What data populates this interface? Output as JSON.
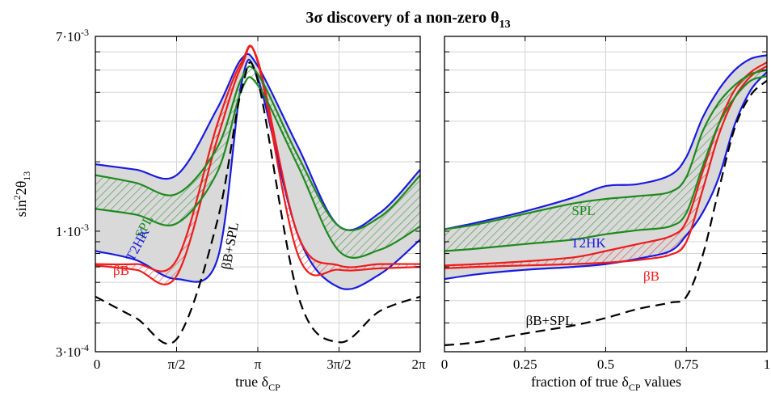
{
  "title": {
    "main": "3σ discovery of a non-zero θ",
    "sub": "13"
  },
  "ylabel": {
    "base": "sin",
    "sup": "2",
    "mid": "2θ",
    "sub": "13"
  },
  "yticks": [
    {
      "value": 0.0003,
      "base": "3·10",
      "exp": "-4"
    },
    {
      "value": 0.001,
      "base": "1·10",
      "exp": "-3"
    },
    {
      "value": 0.007,
      "base": "7·10",
      "exp": "-3"
    }
  ],
  "left_xlabel": {
    "base": "true δ",
    "sub": "CP"
  },
  "right_xlabel": {
    "base": "fraction of true δ",
    "sub": "CP",
    "tail": " values"
  },
  "left_xticks": [
    "0",
    "π/2",
    "π",
    "3π/2",
    "2π"
  ],
  "right_xticks": [
    "0",
    "0.25",
    "0.5",
    "0.75",
    "1"
  ],
  "colors": {
    "T2HK": "#1a1adf",
    "SPL": "#1e8a1e",
    "betaB": "#ee1c1c",
    "combined": "#000000",
    "band": "#d9d9d9"
  },
  "chart_data": [
    {
      "type": "line",
      "xlabel": "true δCP",
      "ylabel": "sin²2θ13",
      "xlim": [
        0,
        6.2832
      ],
      "ylim": [
        0.0003,
        0.007
      ],
      "yscale": "log",
      "grid": true,
      "labels": {
        "SPL": "SPL",
        "T2HK": "T2HK",
        "betaB": "βB",
        "combined": "βB+SPL"
      },
      "x": [
        0,
        0.785,
        1.571,
        2.356,
        2.827,
        3.142,
        3.927,
        4.712,
        5.498,
        6.283
      ],
      "series": [
        {
          "name": "T2HK",
          "band": "upper",
          "values": [
            0.00195,
            0.00185,
            0.00175,
            0.0034,
            0.0056,
            0.0052,
            0.0023,
            0.00105,
            0.0012,
            0.00185
          ]
        },
        {
          "name": "T2HK",
          "band": "lower",
          "values": [
            0.00082,
            0.00075,
            0.00062,
            0.00075,
            0.0044,
            0.0046,
            0.00095,
            0.00057,
            0.00065,
            0.00092
          ]
        },
        {
          "name": "SPL",
          "band": "upper",
          "values": [
            0.00175,
            0.00162,
            0.00145,
            0.0023,
            0.0046,
            0.0048,
            0.0021,
            0.00105,
            0.00115,
            0.00175
          ]
        },
        {
          "name": "SPL",
          "band": "lower",
          "values": [
            0.00125,
            0.00118,
            0.00108,
            0.0018,
            0.0041,
            0.0043,
            0.0019,
            0.00082,
            0.00083,
            0.00105
          ]
        },
        {
          "name": "βB",
          "band": "upper",
          "values": [
            0.00072,
            0.00072,
            0.00075,
            0.0029,
            0.0054,
            0.0055,
            0.00095,
            0.00071,
            0.00072,
            0.00072
          ]
        },
        {
          "name": "βB",
          "band": "lower",
          "values": [
            0.00071,
            0.00068,
            0.00064,
            0.0025,
            0.0052,
            0.0054,
            0.00078,
            0.00068,
            0.00069,
            0.0007
          ]
        },
        {
          "name": "βB+SPL",
          "values": [
            0.00052,
            0.00042,
            0.00034,
            0.0011,
            0.0041,
            0.0045,
            0.00052,
            0.00033,
            0.00045,
            0.00052
          ]
        }
      ]
    },
    {
      "type": "line",
      "xlabel": "fraction of true δCP values",
      "ylabel": "sin²2θ13",
      "xlim": [
        0,
        1
      ],
      "ylim": [
        0.0003,
        0.007
      ],
      "yscale": "log",
      "grid": true,
      "labels": {
        "SPL": "SPL",
        "T2HK": "T2HK",
        "betaB": "βB",
        "combined": "βB+SPL"
      },
      "x": [
        0,
        0.1,
        0.25,
        0.4,
        0.5,
        0.6,
        0.7,
        0.75,
        0.8,
        0.85,
        0.9,
        0.95,
        1.0
      ],
      "series": [
        {
          "name": "T2HK",
          "band": "upper",
          "values": [
            0.00102,
            0.00109,
            0.00122,
            0.0014,
            0.00157,
            0.0016,
            0.00175,
            0.0021,
            0.0031,
            0.0041,
            0.005,
            0.0056,
            0.0058
          ]
        },
        {
          "name": "T2HK",
          "band": "lower",
          "values": [
            0.00062,
            0.00065,
            0.00068,
            0.0007,
            0.00072,
            0.00076,
            0.00082,
            0.00096,
            0.0012,
            0.0017,
            0.0029,
            0.0041,
            0.0049
          ]
        },
        {
          "name": "SPL",
          "band": "upper",
          "values": [
            0.00102,
            0.00107,
            0.00119,
            0.00132,
            0.00138,
            0.00142,
            0.00148,
            0.00172,
            0.0027,
            0.0036,
            0.0043,
            0.0048,
            0.005
          ]
        },
        {
          "name": "SPL",
          "band": "lower",
          "values": [
            0.00082,
            0.00084,
            0.00088,
            0.00092,
            0.00097,
            0.00101,
            0.00105,
            0.0012,
            0.0019,
            0.0029,
            0.0038,
            0.0045,
            0.0047
          ]
        },
        {
          "name": "βB",
          "band": "upper",
          "values": [
            0.00071,
            0.00072,
            0.00074,
            0.00077,
            0.00082,
            0.00088,
            0.00095,
            0.0011,
            0.0018,
            0.0029,
            0.0041,
            0.0049,
            0.0054
          ]
        },
        {
          "name": "βB",
          "band": "lower",
          "values": [
            0.00069,
            0.0007,
            0.00071,
            0.00072,
            0.00073,
            0.00075,
            0.00079,
            0.0009,
            0.0015,
            0.0026,
            0.0038,
            0.0047,
            0.0052
          ]
        },
        {
          "name": "βB+SPL",
          "values": [
            0.00032,
            0.00033,
            0.00036,
            0.00039,
            0.00042,
            0.00046,
            0.00049,
            0.00052,
            0.00078,
            0.0015,
            0.0028,
            0.0039,
            0.0045
          ]
        }
      ]
    }
  ]
}
